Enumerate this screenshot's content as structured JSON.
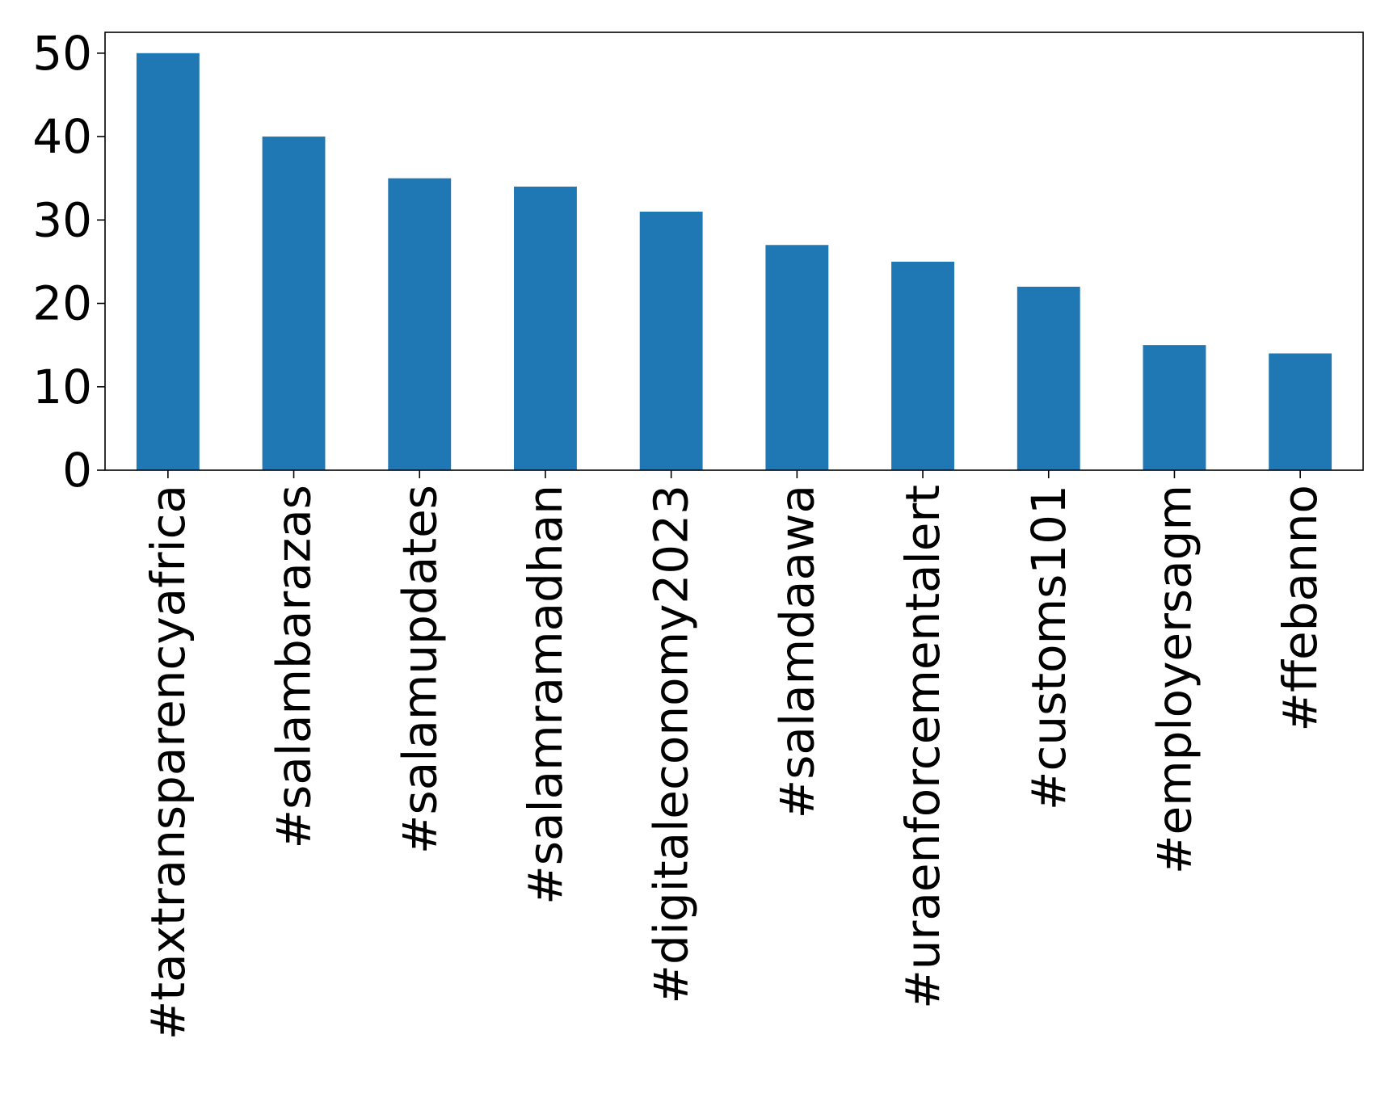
{
  "chart_data": {
    "type": "bar",
    "title": "",
    "xlabel": "",
    "ylabel": "",
    "categories": [
      "#taxtransparencyafrica",
      "#salambarazas",
      "#salamupdates",
      "#salamramadhan",
      "#digitaleconomy2023",
      "#salamdaawa",
      "#uraenforcementalert",
      "#customs101",
      "#employersagm",
      "#ffebanno"
    ],
    "values": [
      50,
      40,
      35,
      34,
      31,
      27,
      25,
      22,
      15,
      14
    ],
    "ylim": [
      0,
      52.5
    ],
    "yticks": [
      0,
      10,
      20,
      30,
      40,
      50
    ],
    "grid": false,
    "legend": "none",
    "bar_color": "#1f77b4"
  }
}
